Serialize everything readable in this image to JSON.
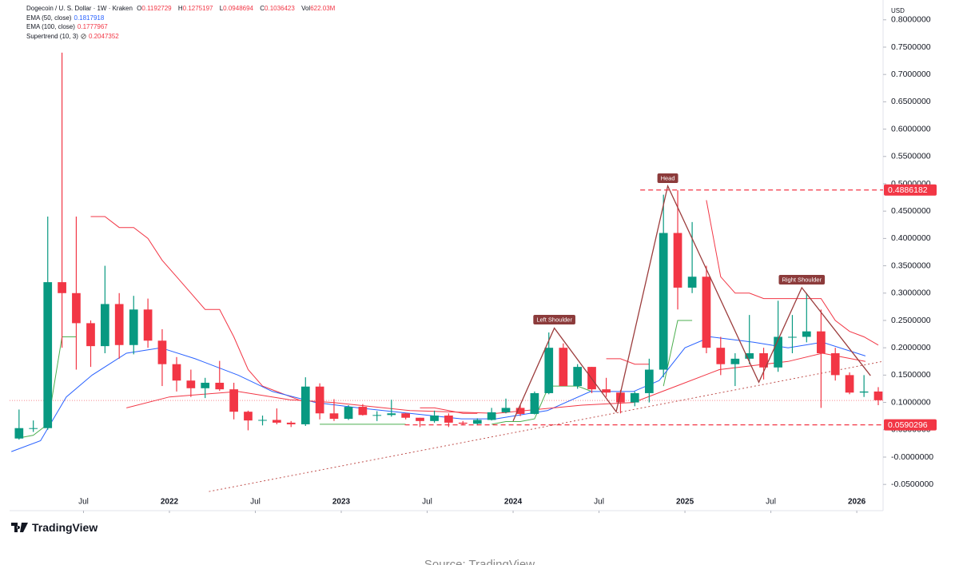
{
  "chart_data": {
    "type": "candlestick",
    "title": "Dogecoin / U. S. Dollar · 1W · Kraken",
    "currency": "USD",
    "ohlc": [
      {
        "label": "O",
        "value": 0.1192729
      },
      {
        "label": "H",
        "value": 0.1275197
      },
      {
        "label": "L",
        "value": 0.0948694
      },
      {
        "label": "C",
        "value": 0.1036423
      },
      {
        "label": "Vol",
        "value": "622.03M"
      }
    ],
    "up_color": "#089981",
    "down_color": "#f23645",
    "x": [
      2021.125,
      2021.208,
      2021.292,
      2021.375,
      2021.458,
      2021.542,
      2021.625,
      2021.708,
      2021.792,
      2021.875,
      2021.958,
      2022.042,
      2022.125,
      2022.208,
      2022.292,
      2022.375,
      2022.458,
      2022.542,
      2022.625,
      2022.708,
      2022.792,
      2022.875,
      2022.958,
      2023.042,
      2023.125,
      2023.208,
      2023.292,
      2023.375,
      2023.458,
      2023.542,
      2023.625,
      2023.708,
      2023.792,
      2023.875,
      2023.958,
      2024.042,
      2024.125,
      2024.208,
      2024.292,
      2024.375,
      2024.458,
      2024.542,
      2024.625,
      2024.708,
      2024.792,
      2024.875,
      2024.958,
      2025.042,
      2025.125,
      2025.208,
      2025.292,
      2025.375,
      2025.458,
      2025.542,
      2025.625,
      2025.708,
      2025.792,
      2025.875,
      2025.958,
      2026.042,
      2026.125
    ],
    "open": [
      0.034,
      0.053,
      0.053,
      0.32,
      0.3,
      0.245,
      0.203,
      0.28,
      0.205,
      0.27,
      0.213,
      0.17,
      0.14,
      0.126,
      0.136,
      0.124,
      0.083,
      0.067,
      0.068,
      0.063,
      0.06,
      0.129,
      0.08,
      0.07,
      0.092,
      0.077,
      0.077,
      0.08,
      0.072,
      0.066,
      0.076,
      0.063,
      0.061,
      0.068,
      0.082,
      0.09,
      0.079,
      0.117,
      0.2,
      0.13,
      0.165,
      0.124,
      0.118,
      0.1,
      0.117,
      0.16,
      0.41,
      0.31,
      0.33,
      0.2,
      0.17,
      0.18,
      0.19,
      0.164,
      0.22,
      0.22,
      0.23,
      0.19,
      0.15,
      0.118,
      0.12
    ],
    "high": [
      0.087,
      0.067,
      0.44,
      0.74,
      0.44,
      0.25,
      0.35,
      0.3,
      0.295,
      0.29,
      0.234,
      0.183,
      0.16,
      0.145,
      0.176,
      0.136,
      0.085,
      0.076,
      0.089,
      0.066,
      0.146,
      0.135,
      0.106,
      0.095,
      0.097,
      0.084,
      0.105,
      0.081,
      0.072,
      0.085,
      0.08,
      0.066,
      0.071,
      0.09,
      0.107,
      0.095,
      0.12,
      0.228,
      0.208,
      0.17,
      0.165,
      0.145,
      0.123,
      0.12,
      0.18,
      0.48,
      0.488,
      0.43,
      0.35,
      0.22,
      0.19,
      0.26,
      0.2,
      0.286,
      0.26,
      0.3,
      0.27,
      0.2,
      0.155,
      0.15,
      0.128
    ],
    "low": [
      0.032,
      0.046,
      0.05,
      0.2,
      0.16,
      0.165,
      0.19,
      0.18,
      0.188,
      0.2,
      0.13,
      0.12,
      0.11,
      0.108,
      0.121,
      0.069,
      0.049,
      0.058,
      0.06,
      0.055,
      0.057,
      0.069,
      0.066,
      0.068,
      0.076,
      0.066,
      0.074,
      0.069,
      0.055,
      0.063,
      0.055,
      0.058,
      0.058,
      0.067,
      0.08,
      0.075,
      0.078,
      0.115,
      0.13,
      0.125,
      0.117,
      0.11,
      0.08,
      0.093,
      0.1,
      0.146,
      0.27,
      0.3,
      0.19,
      0.15,
      0.13,
      0.17,
      0.142,
      0.156,
      0.19,
      0.21,
      0.09,
      0.14,
      0.115,
      0.11,
      0.095
    ],
    "close": [
      0.053,
      0.053,
      0.32,
      0.3,
      0.245,
      0.203,
      0.28,
      0.205,
      0.27,
      0.213,
      0.17,
      0.14,
      0.126,
      0.136,
      0.124,
      0.083,
      0.067,
      0.068,
      0.063,
      0.06,
      0.129,
      0.08,
      0.07,
      0.092,
      0.077,
      0.077,
      0.08,
      0.072,
      0.066,
      0.076,
      0.063,
      0.061,
      0.068,
      0.082,
      0.09,
      0.079,
      0.117,
      0.2,
      0.13,
      0.165,
      0.124,
      0.118,
      0.1,
      0.117,
      0.16,
      0.41,
      0.31,
      0.33,
      0.2,
      0.17,
      0.18,
      0.19,
      0.164,
      0.22,
      0.22,
      0.23,
      0.19,
      0.15,
      0.118,
      0.12,
      0.104
    ],
    "indicators": [
      {
        "name": "EMA (50, close)",
        "value": 0.1817918,
        "color": "#2962ff",
        "x": [
          2021.08,
          2021.25,
          2021.4,
          2021.55,
          2021.75,
          2021.95,
          2022.15,
          2022.4,
          2022.6,
          2022.85,
          2023.1,
          2023.4,
          2023.7,
          2023.9,
          2024.2,
          2024.45,
          2024.7,
          2024.85,
          2025.0,
          2025.15,
          2025.4,
          2025.6,
          2025.8,
          2026.05
        ],
        "values": [
          0.01,
          0.03,
          0.11,
          0.15,
          0.19,
          0.2,
          0.18,
          0.15,
          0.12,
          0.1,
          0.09,
          0.08,
          0.07,
          0.07,
          0.085,
          0.12,
          0.12,
          0.14,
          0.2,
          0.22,
          0.21,
          0.2,
          0.21,
          0.185
        ]
      },
      {
        "name": "EMA (100, close)",
        "value": 0.1777967,
        "color": "#f23645",
        "x": [
          2021.75,
          2022.0,
          2022.4,
          2022.7,
          2022.95,
          2023.4,
          2023.9,
          2024.4,
          2024.7,
          2024.95,
          2025.2,
          2025.6,
          2025.8,
          2026.05
        ],
        "values": [
          0.09,
          0.11,
          0.12,
          0.105,
          0.1,
          0.085,
          0.08,
          0.095,
          0.1,
          0.13,
          0.16,
          0.175,
          0.19,
          0.175
        ]
      }
    ],
    "supertrend": {
      "name": "Supertrend (10, 3)",
      "value": 0.2047352,
      "up_color": "#4caf50",
      "down_color": "#f23645",
      "up": [
        0.035,
        0.04,
        0.06,
        0.22,
        0.22,
        null,
        null,
        null,
        null,
        null,
        null,
        null,
        null,
        null,
        null,
        null,
        null,
        null,
        null,
        null,
        null,
        0.06,
        0.06,
        0.06,
        0.06,
        0.06,
        0.06,
        0.06,
        null,
        null,
        null,
        null,
        null,
        0.06,
        0.065,
        0.065,
        0.07,
        0.13,
        0.13,
        0.13,
        0.12,
        null,
        null,
        null,
        null,
        0.13,
        0.25,
        0.25,
        null,
        null,
        null,
        null,
        null,
        null,
        null,
        null,
        null,
        null,
        null,
        null,
        null
      ],
      "down": [
        null,
        null,
        null,
        null,
        null,
        0.44,
        0.44,
        0.42,
        0.42,
        0.4,
        0.36,
        0.33,
        0.3,
        0.27,
        0.27,
        0.22,
        0.16,
        0.13,
        0.12,
        0.11,
        0.1,
        null,
        null,
        null,
        null,
        null,
        null,
        null,
        0.09,
        0.09,
        0.085,
        0.08,
        0.08,
        null,
        null,
        null,
        null,
        null,
        null,
        null,
        null,
        0.18,
        0.18,
        0.17,
        0.17,
        null,
        null,
        null,
        0.47,
        0.33,
        0.3,
        0.3,
        0.29,
        0.29,
        0.29,
        0.29,
        0.29,
        0.25,
        0.23,
        0.22,
        0.205
      ]
    },
    "pattern": {
      "x": [
        2024.0,
        2024.24,
        2024.6,
        2024.9,
        2025.43,
        2025.68,
        2026.08
      ],
      "values": [
        0.066,
        0.236,
        0.083,
        0.496,
        0.137,
        0.31,
        0.149
      ]
    },
    "trendline": {
      "x": [
        2022.23,
        2026.15
      ],
      "values": [
        -0.063,
        0.175
      ]
    },
    "levels": [
      {
        "value": 0.4886182,
        "label": "0.4886182",
        "x_start": 2024.74
      },
      {
        "value": 0.0590296,
        "label": "0.0590296",
        "x_start": 2023.37
      }
    ],
    "annotations": [
      {
        "text": "Left Shoulder",
        "x": 2024.24,
        "y": 0.2514
      },
      {
        "text": "Head",
        "x": 2024.9,
        "y": 0.5102
      },
      {
        "text": "Right Shoulder",
        "x": 2025.68,
        "y": 0.3245
      }
    ],
    "xlim": [
      2021.07,
      2026.153
    ],
    "xticks": [
      {
        "value": 2021.5,
        "label": "Jul"
      },
      2022,
      {
        "value": 2022.5,
        "label": "Jul"
      },
      2023,
      {
        "value": 2023.5,
        "label": "Jul"
      },
      2024,
      {
        "value": 2024.5,
        "label": "Jul"
      },
      2025,
      {
        "value": 2025.5,
        "label": "Jul"
      },
      2026
    ],
    "ylim": [
      -0.0629,
      0.8216
    ],
    "yticks": [
      {
        "value": -0.05,
        "label": "-0.0500000"
      },
      {
        "value": 0,
        "label": "-0.0000000"
      },
      {
        "value": 0.05,
        "label": "0.0500000"
      },
      {
        "value": 0.1,
        "label": "0.1000000"
      },
      {
        "value": 0.15,
        "label": "0.1500000"
      },
      {
        "value": 0.2,
        "label": "0.2000000"
      },
      {
        "value": 0.25,
        "label": "0.2500000"
      },
      {
        "value": 0.3,
        "label": "0.3000000"
      },
      {
        "value": 0.35,
        "label": "0.3500000"
      },
      {
        "value": 0.4,
        "label": "0.4000000"
      },
      {
        "value": 0.45,
        "label": "0.4500000"
      },
      {
        "value": 0.5,
        "label": "0.5000000"
      },
      {
        "value": 0.55,
        "label": "0.5500000"
      },
      {
        "value": 0.6,
        "label": "0.6000000"
      },
      {
        "value": 0.65,
        "label": "0.6500000"
      },
      {
        "value": 0.7,
        "label": "0.7000000"
      },
      {
        "value": 0.75,
        "label": "0.7500000"
      },
      {
        "value": 0.8,
        "label": "0.8000000"
      }
    ],
    "brand": "TradingView",
    "source": "Source: TradingView"
  }
}
